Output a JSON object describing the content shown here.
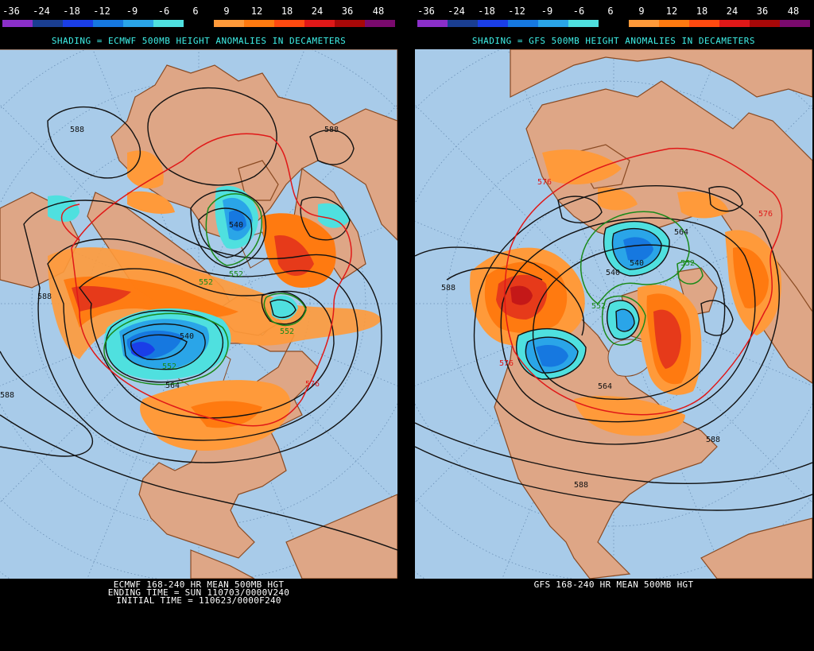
{
  "scale": {
    "ticks": [
      "-36",
      "-24",
      "-18",
      "-12",
      "-9",
      "-6",
      "6",
      "9",
      "12",
      "18",
      "24",
      "36",
      "48"
    ],
    "colors": [
      "#8b2fc9",
      "#1a3e91",
      "#1a3ee8",
      "#1678e0",
      "#2aa5e8",
      "#4fe0df",
      "#000000",
      "#ff9a3a",
      "#ff7a10",
      "#ff4a10",
      "#e01818",
      "#a80808",
      "#7a0a6e"
    ]
  },
  "panels": {
    "left": {
      "shading_title": "SHADING = ECMWF 500MB HEIGHT ANOMALIES IN DECAMETERS",
      "footer": [
        "ECMWF 168-240 HR MEAN 500MB HGT",
        "ENDING TIME = SUN 110703/0000V240",
        "INITIAL TIME = 110623/0000F240"
      ],
      "contour_labels": [
        "588",
        "588",
        "588",
        "540",
        "552",
        "552",
        "540",
        "552",
        "552",
        "564",
        "576",
        "588"
      ]
    },
    "right": {
      "shading_title": "SHADING = GFS 500MB HEIGHT ANOMALIES IN DECAMETERS",
      "footer": [
        "GFS 168-240 HR MEAN 500MB HGT"
      ],
      "contour_labels": [
        "576",
        "564",
        "540",
        "552",
        "588",
        "576",
        "540",
        "552",
        "564",
        "588",
        "588",
        "576"
      ]
    }
  },
  "colors": {
    "ocean": "#a8cbe9",
    "land": "#dea686",
    "coast": "#8a4a22",
    "contour_588": "#000000",
    "contour_576": "#e01818",
    "contour_552": "#1a8a1a",
    "title": "#3ef0e8"
  }
}
